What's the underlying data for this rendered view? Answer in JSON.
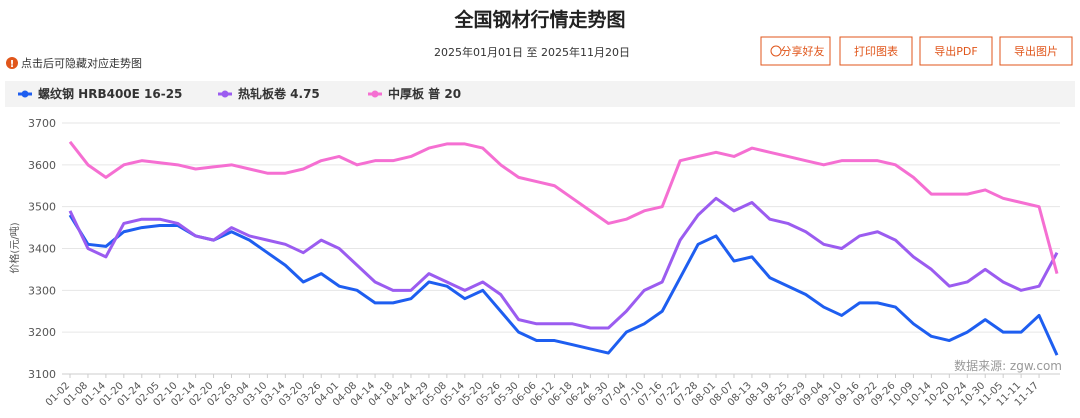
{
  "hint": "点击后可隐藏对应走势图",
  "toolbar": {
    "buttons": [
      "分享好友",
      "打印图表",
      "导出PDF",
      "导出图片"
    ]
  },
  "chart_data": {
    "type": "line",
    "title": "全国钢材行情走势图",
    "subtitle": "2025年01月01日 至 2025年11月20日",
    "y_label": "价格(元/吨)",
    "source": "数据来源: zgw.com",
    "categories": [
      "01-02",
      "01-08",
      "01-14",
      "01-20",
      "01-24",
      "02-05",
      "02-10",
      "02-14",
      "02-20",
      "02-26",
      "03-04",
      "03-10",
      "03-14",
      "03-20",
      "03-26",
      "04-01",
      "04-08",
      "04-14",
      "04-18",
      "04-24",
      "04-29",
      "05-08",
      "05-14",
      "05-20",
      "05-26",
      "05-30",
      "06-06",
      "06-12",
      "06-18",
      "06-24",
      "06-30",
      "07-04",
      "07-10",
      "07-16",
      "07-22",
      "07-28",
      "08-01",
      "08-07",
      "08-13",
      "08-19",
      "08-25",
      "08-29",
      "09-04",
      "09-10",
      "09-16",
      "09-22",
      "09-26",
      "10-09",
      "10-14",
      "10-20",
      "10-24",
      "10-30",
      "11-05",
      "11-11",
      "11-17",
      null
    ],
    "series": [
      {
        "name": "螺纹钢 HRB400E 16-25",
        "color": "#1e5ef0",
        "values": [
          3480,
          3410,
          3405,
          3440,
          3450,
          3455,
          3455,
          3430,
          3420,
          3440,
          3420,
          3390,
          3360,
          3320,
          3340,
          3310,
          3300,
          3270,
          3270,
          3280,
          3320,
          3310,
          3280,
          3300,
          3250,
          3200,
          3180,
          3180,
          3170,
          3160,
          3150,
          3200,
          3220,
          3250,
          3330,
          3410,
          3430,
          3370,
          3380,
          3330,
          3310,
          3290,
          3260,
          3240,
          3270,
          3270,
          3260,
          3220,
          3190,
          3180,
          3200,
          3230,
          3200,
          3200,
          3240,
          3145
        ]
      },
      {
        "name": "热轧板卷 4.75",
        "color": "#9b5cf0",
        "values": [
          3490,
          3400,
          3380,
          3460,
          3470,
          3470,
          3460,
          3430,
          3420,
          3450,
          3430,
          3420,
          3410,
          3390,
          3420,
          3400,
          3360,
          3320,
          3300,
          3300,
          3340,
          3320,
          3300,
          3320,
          3290,
          3230,
          3220,
          3220,
          3220,
          3210,
          3210,
          3250,
          3300,
          3320,
          3420,
          3480,
          3520,
          3490,
          3510,
          3470,
          3460,
          3440,
          3410,
          3400,
          3430,
          3440,
          3420,
          3380,
          3350,
          3310,
          3320,
          3350,
          3320,
          3300,
          3310,
          3390
        ]
      },
      {
        "name": "中厚板 普 20",
        "color": "#f56fd2",
        "values": [
          3655,
          3600,
          3570,
          3600,
          3610,
          3605,
          3600,
          3590,
          3595,
          3600,
          3590,
          3580,
          3580,
          3590,
          3610,
          3620,
          3600,
          3610,
          3610,
          3620,
          3640,
          3650,
          3650,
          3640,
          3600,
          3570,
          3560,
          3550,
          3520,
          3490,
          3460,
          3470,
          3490,
          3500,
          3610,
          3620,
          3630,
          3620,
          3640,
          3630,
          3620,
          3610,
          3600,
          3610,
          3610,
          3610,
          3600,
          3570,
          3530,
          3530,
          3530,
          3540,
          3520,
          3510,
          3500,
          3340
        ]
      }
    ],
    "ylim": [
      3100,
      3700
    ],
    "yticks": [
      3100,
      3200,
      3300,
      3400,
      3500,
      3600,
      3700
    ],
    "grid": true
  }
}
